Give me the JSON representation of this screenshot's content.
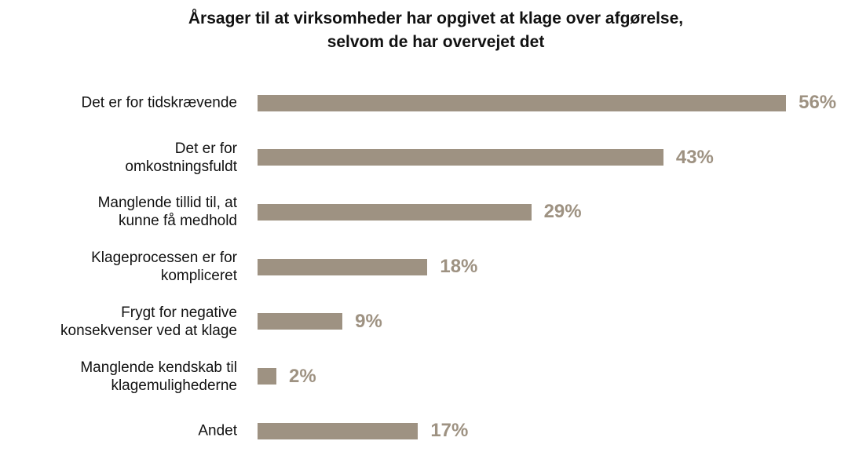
{
  "chart_data": {
    "type": "bar",
    "orientation": "horizontal",
    "title": [
      "Årsager til at virksomheder har opgivet at klage over afgørelse,",
      "selvom de har overvejet det"
    ],
    "categories": [
      "Det er for tidskrævende",
      "Det er for\nomkostningsfuldt",
      "Manglende tillid til, at\nkunne få medhold",
      "Klageprocessen er for\nkompliceret",
      "Frygt for negative\nkonsekvenser ved at klage",
      "Manglende kendskab til\nklagemulighederne",
      "Andet"
    ],
    "values": [
      56,
      43,
      29,
      18,
      9,
      2,
      17
    ],
    "value_labels": [
      "56%",
      "43%",
      "29%",
      "18%",
      "9%",
      "2%",
      "17%"
    ],
    "color": "#9e9282"
  }
}
